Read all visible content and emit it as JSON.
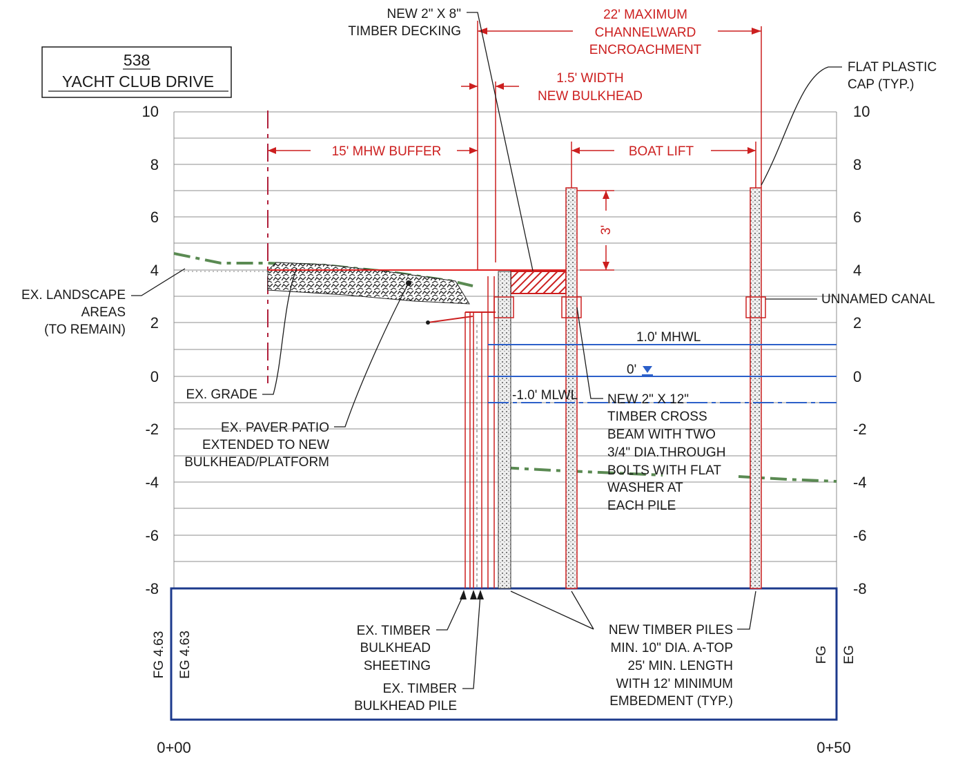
{
  "title_block": {
    "number": "538",
    "street": "YACHT CLUB DRIVE"
  },
  "axis": {
    "left_ticks": [
      "10",
      "8",
      "6",
      "4",
      "2",
      "0",
      "-2",
      "-4",
      "-6",
      "-8"
    ],
    "right_ticks": [
      "10",
      "8",
      "6",
      "4",
      "2",
      "0",
      "-2",
      "-4",
      "-6",
      "-8"
    ],
    "station_start": "0+00",
    "station_end": "0+50"
  },
  "dimensions": {
    "channelward": [
      "22' MAXIMUM",
      "CHANNELWARD",
      "ENCROACHMENT"
    ],
    "bulkhead_width": [
      "1.5' WIDTH",
      "NEW BULKHEAD"
    ],
    "buffer": "15' MHW BUFFER",
    "boat_lift": "BOAT LIFT",
    "pile_height": "3'"
  },
  "water_levels": {
    "mhwl": "1.0' MHWL",
    "zero": "0'",
    "mlwl": "-1.0' MLWL"
  },
  "callouts": {
    "decking": [
      "NEW 2\" X 8\"",
      "TIMBER DECKING"
    ],
    "cap": [
      "FLAT PLASTIC",
      "CAP (TYP.)"
    ],
    "landscape": [
      "EX. LANDSCAPE",
      "AREAS",
      "(TO REMAIN)"
    ],
    "canal": "UNNAMED CANAL",
    "grade": "EX. GRADE",
    "patio": [
      "EX. PAVER PATIO",
      "EXTENDED TO NEW",
      "BULKHEAD/PLATFORM"
    ],
    "cross_beam": [
      "NEW 2\" X 12\"",
      "TIMBER CROSS",
      "BEAM WITH TWO",
      "3/4\" DIA.THROUGH",
      "BOLTS WITH FLAT",
      "WASHER AT",
      "EACH PILE"
    ],
    "sheeting": [
      "EX. TIMBER",
      "BULKHEAD",
      "SHEETING"
    ],
    "bulkhead_pile": [
      "EX. TIMBER",
      "BULKHEAD PILE"
    ],
    "piles": [
      "NEW TIMBER PILES",
      "MIN. 10\" DIA. A-TOP",
      "25' MIN. LENGTH",
      "WITH 12' MINIMUM",
      "EMBEDMENT (TYP.)"
    ]
  },
  "grade_labels": {
    "fg_left": "FG 4.63",
    "eg_left": "EG 4.63",
    "fg_right": "FG",
    "eg_right": "EG"
  },
  "colors": {
    "dimension": "#cc1f1f",
    "water": "#2b5fc9",
    "datum_box": "#1c3a8c",
    "grade": "#5a8a52",
    "text": "#1a1a1a"
  }
}
